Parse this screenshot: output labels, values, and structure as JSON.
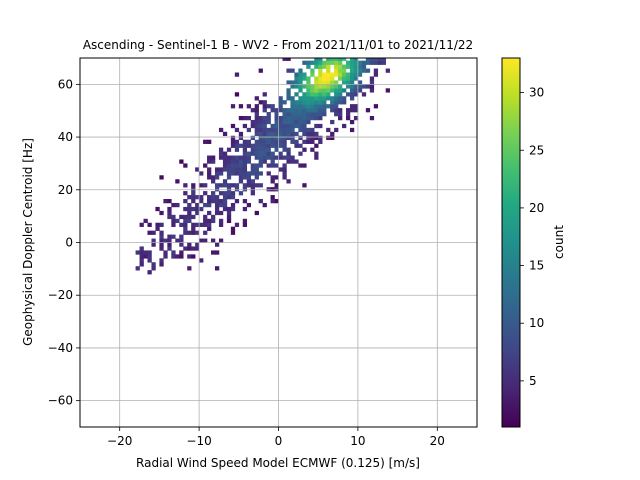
{
  "chart_data": {
    "type": "heatmap",
    "title": "Ascending - Sentinel-1 B - WV2 - From 2021/11/01 to 2021/11/22",
    "xlabel": "Radial Wind Speed Model ECMWF (0.125) [m/s]",
    "ylabel": "Geophysical Doppler Centroid [Hz]",
    "xlim": [
      -25,
      25
    ],
    "ylim": [
      -70,
      70
    ],
    "xticks": [
      -20,
      -10,
      0,
      10,
      20
    ],
    "yticks": [
      -60,
      -40,
      -20,
      0,
      20,
      40,
      60
    ],
    "grid": true,
    "colormap": "viridis",
    "colorbar": {
      "label": "count",
      "min": 1,
      "max": 33,
      "ticks": [
        5,
        10,
        15,
        20,
        25,
        30
      ]
    },
    "bin_size": {
      "x": 0.5,
      "y": 1.5
    },
    "density_model": {
      "ridge_slope_hz_per_ms": 2.9,
      "ridge_intercept_hz": 42,
      "ridge_halfwidth_hz": 11,
      "x_range": [
        -18,
        14
      ],
      "y_range": [
        -12,
        70
      ],
      "peak_count": 33,
      "peak_location": [
        5,
        64
      ]
    }
  }
}
